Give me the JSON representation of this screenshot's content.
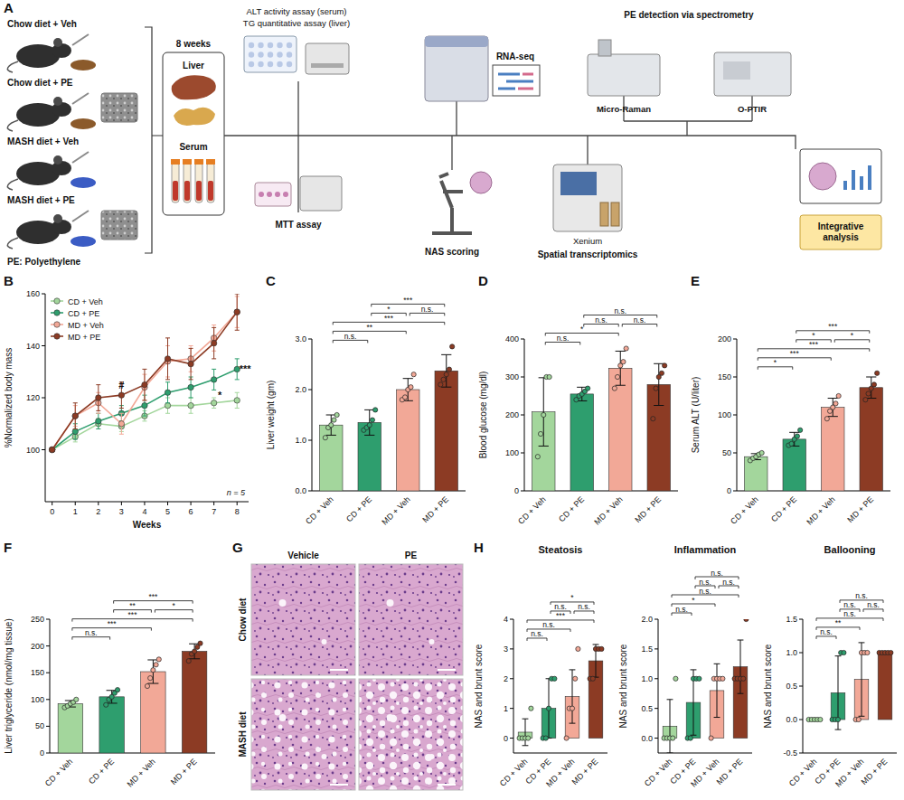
{
  "diagram": {
    "panel": "A",
    "groups": [
      "Chow diet + Veh",
      "Chow diet + PE",
      "MASH diet + Veh",
      "MASH diet + PE"
    ],
    "note": "PE: Polyethylene",
    "duration": "8 weeks",
    "samples": [
      "Liver",
      "Serum"
    ],
    "assays": [
      "ALT activity assay (serum)",
      "TG quantitative assay (liver)",
      "RNA-seq",
      "PE detection via spectrometry",
      "Micro-Raman",
      "O-PTIR",
      "MTT assay",
      "NAS scoring",
      "Xenium",
      "Spatial transcriptomics",
      "Integrative analysis"
    ]
  },
  "images": {
    "panel": "G",
    "columns": [
      "Vehicle",
      "PE"
    ],
    "rows": [
      "Chow diet",
      "MASH diet"
    ]
  },
  "chart_data": [
    {
      "panel": "B",
      "type": "line",
      "x_label": "Weeks",
      "y_label": "%Normalized body mass",
      "x": [
        0,
        1,
        2,
        3,
        4,
        5,
        6,
        7,
        8
      ],
      "xlim": [
        -0.3,
        8.5
      ],
      "xticks": [
        0,
        1,
        2,
        3,
        4,
        5,
        6,
        7,
        8
      ],
      "ylim": [
        80,
        160
      ],
      "yticks": [
        100,
        120,
        140,
        160
      ],
      "legend": "top-left",
      "note": "n = 5",
      "series": [
        {
          "name": "CD + Veh",
          "color": "#a3d69c",
          "marker": "circle",
          "values": [
            100,
            105,
            110,
            109,
            113,
            117,
            117,
            118,
            119
          ],
          "errors": [
            0,
            2,
            2,
            2,
            2,
            3,
            3,
            2,
            3
          ]
        },
        {
          "name": "CD + PE",
          "color": "#2e9e6e",
          "marker": "circle",
          "values": [
            100,
            107,
            111,
            114,
            117,
            122,
            124,
            127,
            131
          ],
          "errors": [
            0,
            3,
            3,
            3,
            4,
            4,
            4,
            4,
            4
          ]
        },
        {
          "name": "MD + Veh",
          "color": "#f2a897",
          "marker": "circle",
          "values": [
            100,
            113,
            118,
            110,
            124,
            134,
            135,
            143,
            153
          ],
          "errors": [
            0,
            4,
            4,
            4,
            5,
            6,
            5,
            5,
            6
          ]
        },
        {
          "name": "MD + PE",
          "color": "#8c3b24",
          "marker": "circle",
          "values": [
            100,
            113,
            120,
            121,
            125,
            135,
            133,
            141,
            153
          ],
          "errors": [
            0,
            5,
            5,
            5,
            6,
            8,
            6,
            6,
            7
          ]
        }
      ],
      "annotations": [
        {
          "text": "#",
          "x": 3,
          "y": 125
        },
        {
          "text": "*",
          "x": 7.25,
          "y": 121
        },
        {
          "text": "***",
          "x": 8.35,
          "y": 131
        }
      ]
    },
    {
      "panel": "C",
      "type": "bar",
      "y_label": "Liver weight (gm)",
      "categories": [
        "CD + Veh",
        "CD + PE",
        "MD + Veh",
        "MD + PE"
      ],
      "values": [
        1.3,
        1.35,
        2.0,
        2.37
      ],
      "errors": [
        0.2,
        0.25,
        0.22,
        0.32
      ],
      "points": [
        [
          1.05,
          1.25,
          1.3,
          1.4,
          1.5
        ],
        [
          1.2,
          1.25,
          1.3,
          1.4,
          1.6
        ],
        [
          1.8,
          1.85,
          2.0,
          2.05,
          2.3
        ],
        [
          2.1,
          2.2,
          2.3,
          2.4,
          2.85
        ]
      ],
      "colors": [
        "#a3d69c",
        "#2e9e6e",
        "#f2a897",
        "#8c3b24"
      ],
      "ylim": [
        0,
        3
      ],
      "yticks": [
        {
          "value": 0,
          "label": "0.0"
        },
        {
          "value": 1,
          "label": "1.0"
        },
        {
          "value": 2,
          "label": "2.0"
        },
        {
          "value": 3,
          "label": "3.0"
        }
      ],
      "comparisons": [
        {
          "pair": [
            0,
            1
          ],
          "label": "n.s."
        },
        {
          "pair": [
            0,
            2
          ],
          "label": "**"
        },
        {
          "pair": [
            0,
            3
          ],
          "label": "***"
        },
        {
          "pair": [
            1,
            2
          ],
          "label": "*"
        },
        {
          "pair": [
            2,
            3
          ],
          "label": "n.s."
        },
        {
          "pair": [
            1,
            3
          ],
          "label": "***"
        }
      ]
    },
    {
      "panel": "D",
      "type": "bar",
      "y_label": "Blood glucose (mg/dl)",
      "categories": [
        "CD + Veh",
        "CD + PE",
        "MD + Veh",
        "MD + PE"
      ],
      "values": [
        208,
        255,
        323,
        280
      ],
      "errors": [
        90,
        18,
        45,
        55
      ],
      "points": [
        [
          90,
          150,
          200,
          300,
          300
        ],
        [
          240,
          250,
          255,
          262,
          270
        ],
        [
          270,
          300,
          330,
          340,
          375
        ],
        [
          190,
          270,
          300,
          310,
          330
        ]
      ],
      "colors": [
        "#a3d69c",
        "#2e9e6e",
        "#f2a897",
        "#8c3b24"
      ],
      "ylim": [
        0,
        400
      ],
      "yticks": [
        0,
        100,
        200,
        300,
        400
      ],
      "comparisons": [
        {
          "pair": [
            0,
            1
          ],
          "label": "n.s."
        },
        {
          "pair": [
            0,
            2
          ],
          "label": "*"
        },
        {
          "pair": [
            1,
            2
          ],
          "label": "n.s."
        },
        {
          "pair": [
            2,
            3
          ],
          "label": "n.s."
        },
        {
          "pair": [
            1,
            3
          ],
          "label": "n.s."
        }
      ]
    },
    {
      "panel": "E",
      "type": "bar",
      "y_label": "Serum ALT (U/liter)",
      "categories": [
        "CD + Veh",
        "CD + PE",
        "MD + Veh",
        "MD + PE"
      ],
      "values": [
        45,
        68,
        110,
        136
      ],
      "errors": [
        4,
        9,
        12,
        14
      ],
      "points": [
        [
          40,
          43,
          45,
          48,
          50
        ],
        [
          60,
          62,
          68,
          72,
          80
        ],
        [
          95,
          105,
          110,
          115,
          125
        ],
        [
          120,
          128,
          135,
          140,
          155
        ]
      ],
      "colors": [
        "#a3d69c",
        "#2e9e6e",
        "#f2a897",
        "#8c3b24"
      ],
      "ylim": [
        0,
        200
      ],
      "yticks": [
        0,
        50,
        100,
        150,
        200
      ],
      "comparisons": [
        {
          "pair": [
            0,
            1
          ],
          "label": "*"
        },
        {
          "pair": [
            0,
            2
          ],
          "label": "***"
        },
        {
          "pair": [
            0,
            3
          ],
          "label": "***"
        },
        {
          "pair": [
            1,
            2
          ],
          "label": "*"
        },
        {
          "pair": [
            2,
            3
          ],
          "label": "*"
        },
        {
          "pair": [
            1,
            3
          ],
          "label": "***"
        }
      ]
    },
    {
      "panel": "F",
      "type": "bar",
      "y_label": "Liver triglyceride (nmol/mg tissue)",
      "categories": [
        "CD + Veh",
        "CD + PE",
        "MD + Veh",
        "MD + PE"
      ],
      "values": [
        92,
        105,
        152,
        190
      ],
      "errors": [
        6,
        12,
        22,
        14
      ],
      "points": [
        [
          85,
          88,
          92,
          95,
          100
        ],
        [
          90,
          100,
          105,
          112,
          118
        ],
        [
          125,
          140,
          155,
          165,
          175
        ],
        [
          172,
          185,
          190,
          198,
          205
        ]
      ],
      "colors": [
        "#a3d69c",
        "#2e9e6e",
        "#f2a897",
        "#8c3b24"
      ],
      "ylim": [
        0,
        250
      ],
      "yticks": [
        0,
        50,
        100,
        150,
        200,
        250
      ],
      "comparisons": [
        {
          "pair": [
            0,
            1
          ],
          "label": "n.s."
        },
        {
          "pair": [
            0,
            2
          ],
          "label": "***"
        },
        {
          "pair": [
            0,
            3
          ],
          "label": "***"
        },
        {
          "pair": [
            1,
            2
          ],
          "label": "**"
        },
        {
          "pair": [
            2,
            3
          ],
          "label": "*"
        },
        {
          "pair": [
            1,
            3
          ],
          "label": "***"
        }
      ]
    },
    {
      "panel": "H",
      "type": "bar",
      "title": "Steatosis",
      "y_label": "NAS and brunt score",
      "categories": [
        "CD + Veh",
        "CD + PE",
        "MD + Veh",
        "MD + PE"
      ],
      "values": [
        0.2,
        1.0,
        1.4,
        2.6
      ],
      "errors": [
        0.45,
        1.0,
        0.9,
        0.55
      ],
      "points": [
        [
          0,
          0,
          0,
          0,
          1
        ],
        [
          0,
          0,
          1,
          2,
          2
        ],
        [
          0,
          1,
          1,
          2,
          3
        ],
        [
          2,
          2,
          3,
          3,
          3
        ]
      ],
      "colors": [
        "#a3d69c",
        "#2e9e6e",
        "#f2a897",
        "#8c3b24"
      ],
      "ylim": [
        -0.5,
        4
      ],
      "yticks": [
        0,
        1,
        2,
        3,
        4
      ],
      "comparisons": [
        {
          "pair": [
            0,
            1
          ],
          "label": "n.s."
        },
        {
          "pair": [
            0,
            2
          ],
          "label": "n.s."
        },
        {
          "pair": [
            0,
            3
          ],
          "label": "***"
        },
        {
          "pair": [
            1,
            2
          ],
          "label": "n.s."
        },
        {
          "pair": [
            2,
            3
          ],
          "label": "n.s."
        },
        {
          "pair": [
            1,
            3
          ],
          "label": "*"
        }
      ]
    },
    {
      "type": "bar",
      "title": "Inflammation",
      "y_label": "NAS and brunt score",
      "categories": [
        "CD + Veh",
        "CD + PE",
        "MD + Veh",
        "MD + PE"
      ],
      "values": [
        0.2,
        0.6,
        0.8,
        1.2
      ],
      "errors": [
        0.45,
        0.55,
        0.45,
        0.45
      ],
      "points": [
        [
          0,
          0,
          0,
          0,
          1
        ],
        [
          0,
          0,
          1,
          1,
          1
        ],
        [
          0,
          1,
          1,
          1,
          1
        ],
        [
          1,
          1,
          1,
          1,
          2
        ]
      ],
      "colors": [
        "#a3d69c",
        "#2e9e6e",
        "#f2a897",
        "#8c3b24"
      ],
      "ylim": [
        -0.25,
        2
      ],
      "yticks": [
        {
          "value": 0,
          "label": "0.0"
        },
        {
          "value": 0.5,
          "label": "0.5"
        },
        {
          "value": 1,
          "label": "1.0"
        },
        {
          "value": 1.5,
          "label": "1.5"
        },
        {
          "value": 2,
          "label": "2.0"
        }
      ],
      "comparisons": [
        {
          "pair": [
            0,
            1
          ],
          "label": "n.s."
        },
        {
          "pair": [
            0,
            2
          ],
          "label": "*"
        },
        {
          "pair": [
            0,
            3
          ],
          "label": "n.s."
        },
        {
          "pair": [
            1,
            2
          ],
          "label": "n.s."
        },
        {
          "pair": [
            2,
            3
          ],
          "label": "n.s."
        },
        {
          "pair": [
            1,
            3
          ],
          "label": "n.s."
        }
      ]
    },
    {
      "type": "bar",
      "title": "Ballooning",
      "y_label": "NAS and brunt score",
      "categories": [
        "CD + Veh",
        "CD + PE",
        "MD + Veh",
        "MD + PE"
      ],
      "values": [
        0,
        0.4,
        0.6,
        1.0
      ],
      "errors": [
        0,
        0.55,
        0.55,
        0
      ],
      "points": [
        [
          0,
          0,
          0,
          0,
          0
        ],
        [
          0,
          0,
          0,
          1,
          1
        ],
        [
          0,
          0,
          1,
          1,
          1
        ],
        [
          1,
          1,
          1,
          1,
          1
        ]
      ],
      "colors": [
        "#a3d69c",
        "#2e9e6e",
        "#f2a897",
        "#8c3b24"
      ],
      "ylim": [
        -0.5,
        1.5
      ],
      "yticks": [
        {
          "value": -0.5,
          "label": "-0.5"
        },
        {
          "value": 0,
          "label": "0.0"
        },
        {
          "value": 0.5,
          "label": "0.5"
        },
        {
          "value": 1,
          "label": "1.0"
        },
        {
          "value": 1.5,
          "label": "1.5"
        }
      ],
      "comparisons": [
        {
          "pair": [
            0,
            1
          ],
          "label": "n.s."
        },
        {
          "pair": [
            0,
            2
          ],
          "label": "**"
        },
        {
          "pair": [
            0,
            3
          ],
          "label": "n.s."
        },
        {
          "pair": [
            1,
            2
          ],
          "label": "n.s."
        },
        {
          "pair": [
            2,
            3
          ],
          "label": "n.s."
        },
        {
          "pair": [
            1,
            3
          ],
          "label": "n.s."
        }
      ]
    }
  ]
}
